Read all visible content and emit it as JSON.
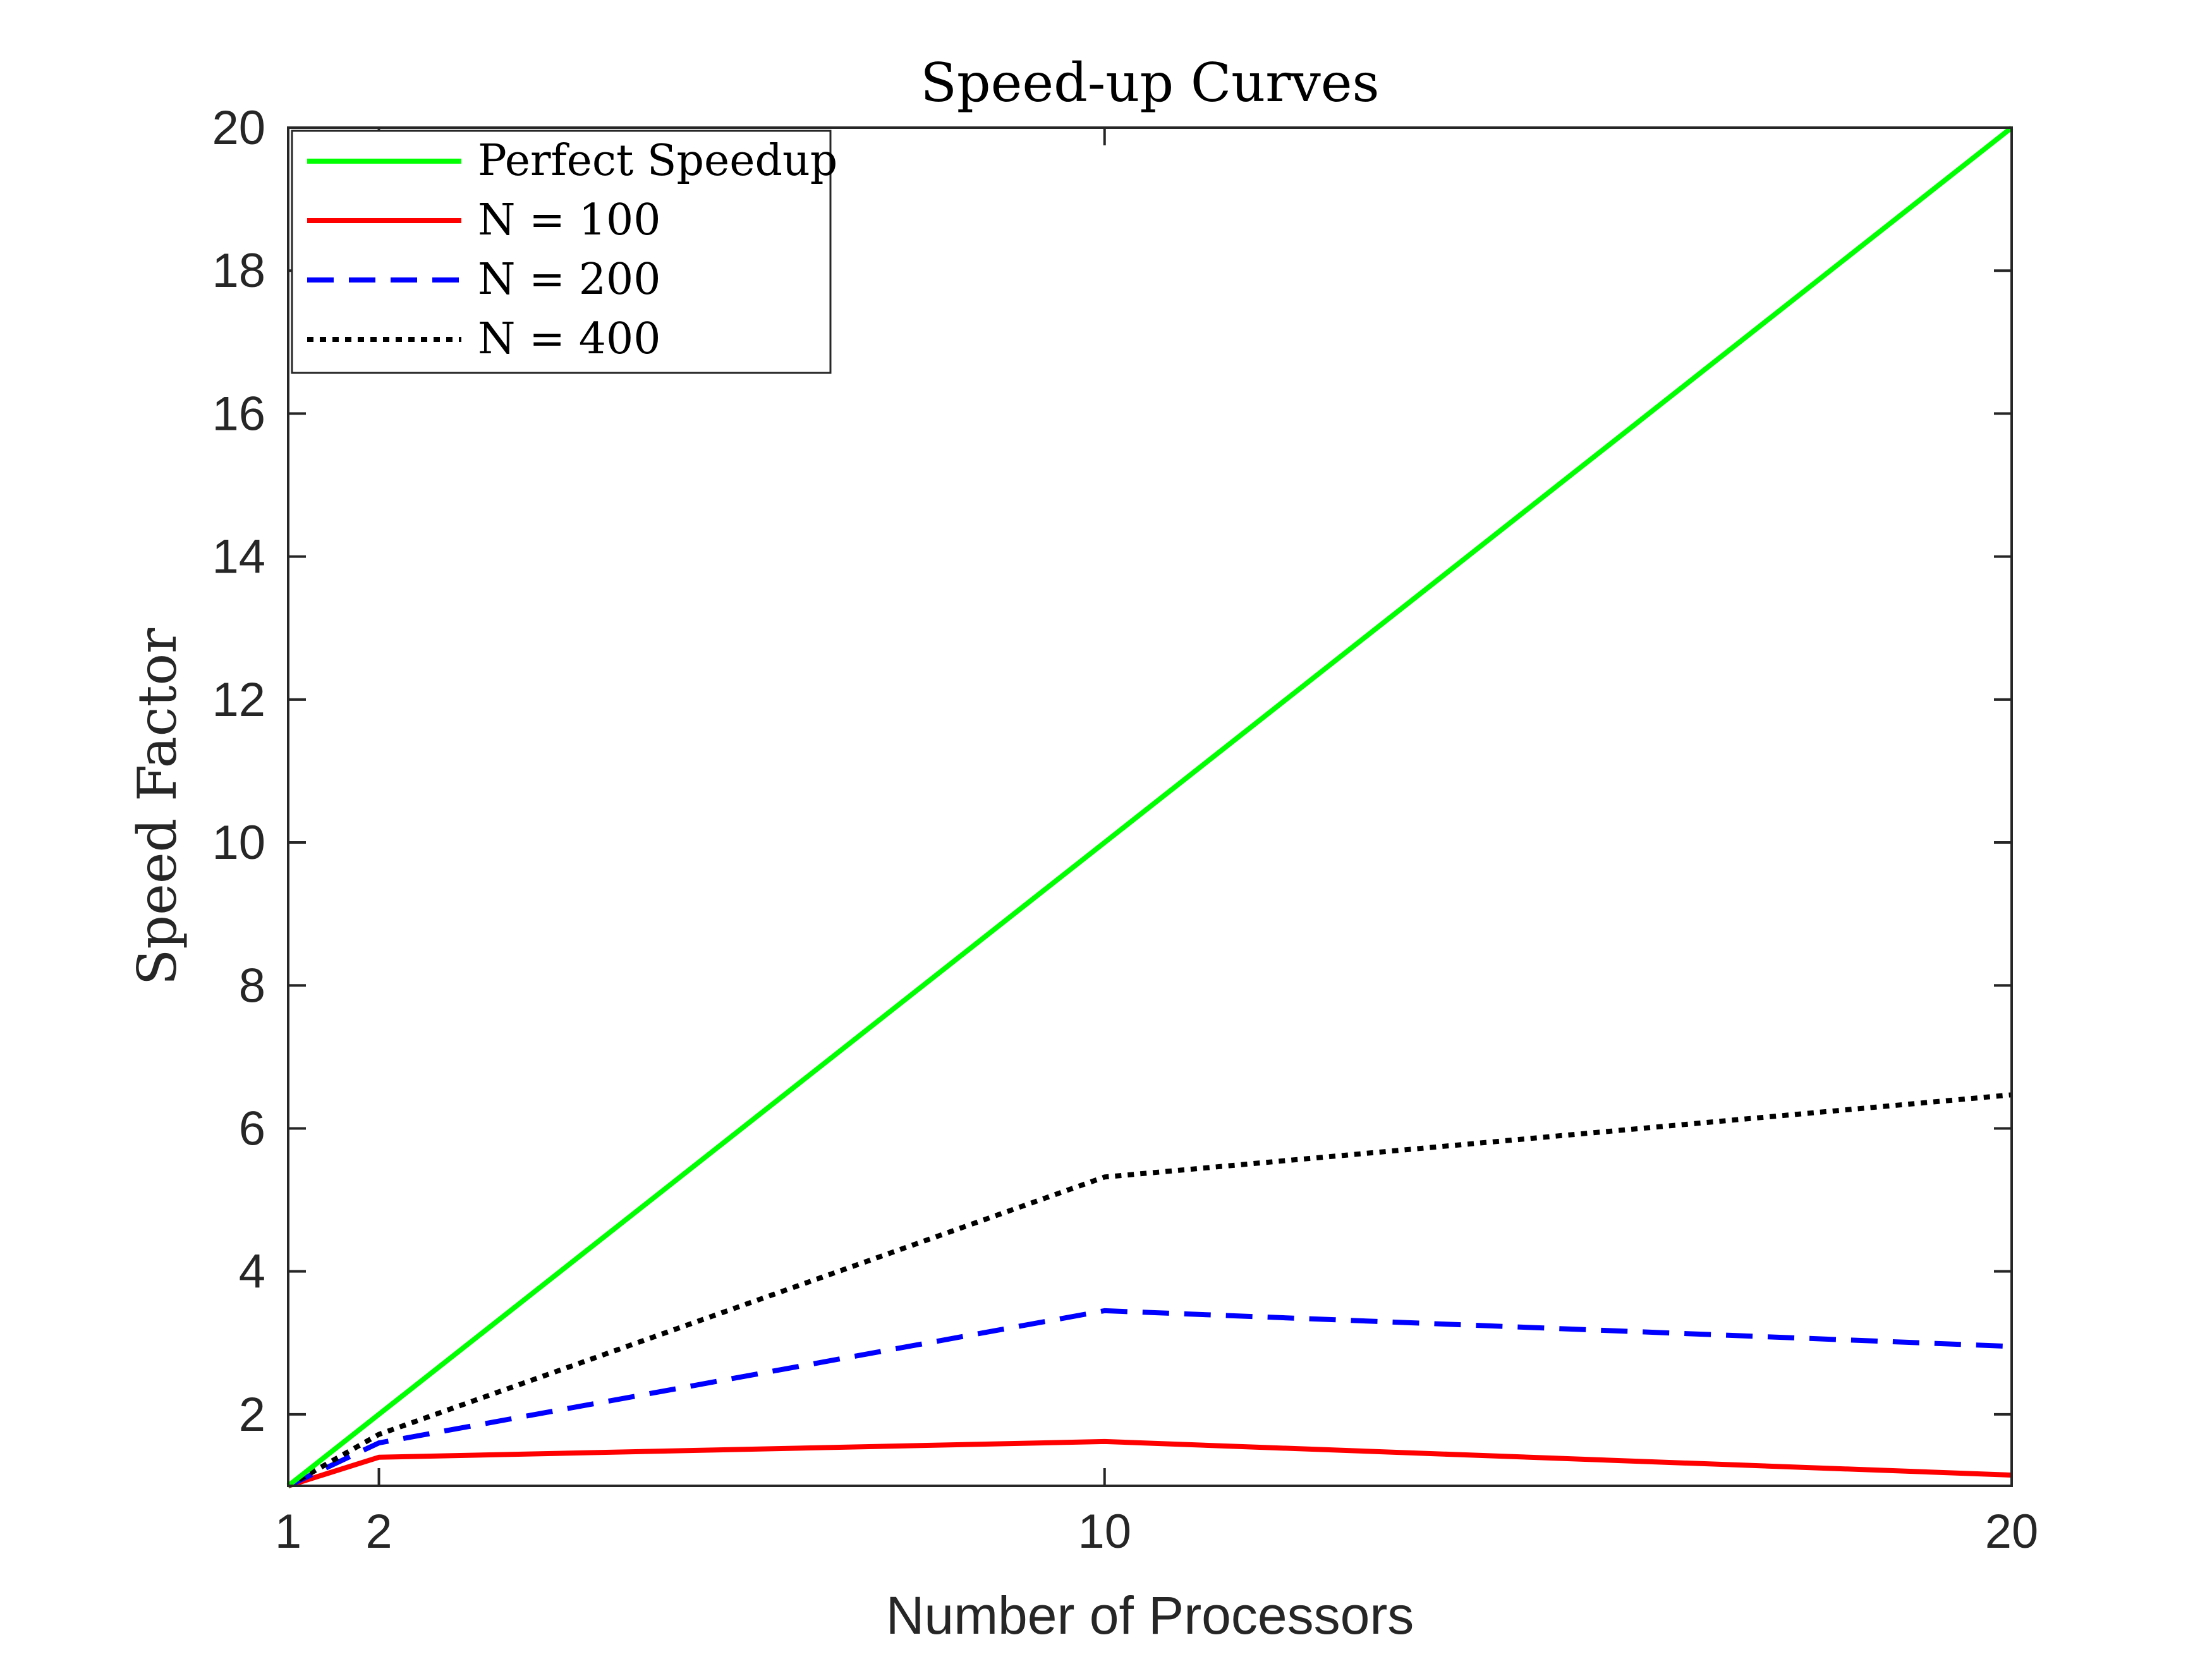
{
  "chart_data": {
    "type": "line",
    "title": "Speed-up Curves",
    "xlabel": "Number of Processors",
    "ylabel": "Speed Factor",
    "xlim": [
      1,
      20
    ],
    "ylim": [
      1,
      20
    ],
    "xticks": [
      1,
      2,
      10,
      20
    ],
    "yticks": [
      2,
      4,
      6,
      8,
      10,
      12,
      14,
      16,
      18,
      20
    ],
    "grid": false,
    "legend_position": "top-left",
    "x": [
      1,
      2,
      10,
      20
    ],
    "series": [
      {
        "name": "Perfect Speedup",
        "legend_label": "Perfect Speedup",
        "values": [
          1,
          2,
          10,
          20
        ],
        "color": "#00ff00",
        "dash": "solid"
      },
      {
        "name": "N = 100",
        "legend_label": "N = 100",
        "values": [
          1,
          1.4,
          1.62,
          1.15
        ],
        "color": "#ff0000",
        "dash": "solid"
      },
      {
        "name": "N = 200",
        "legend_label": "N = 200",
        "values": [
          1,
          1.6,
          3.45,
          2.95
        ],
        "color": "#0000ff",
        "dash": "dashed"
      },
      {
        "name": "N = 400",
        "legend_label": "N = 400",
        "values": [
          1,
          1.72,
          5.32,
          6.47
        ],
        "color": "#000000",
        "dash": "dotted"
      }
    ]
  }
}
